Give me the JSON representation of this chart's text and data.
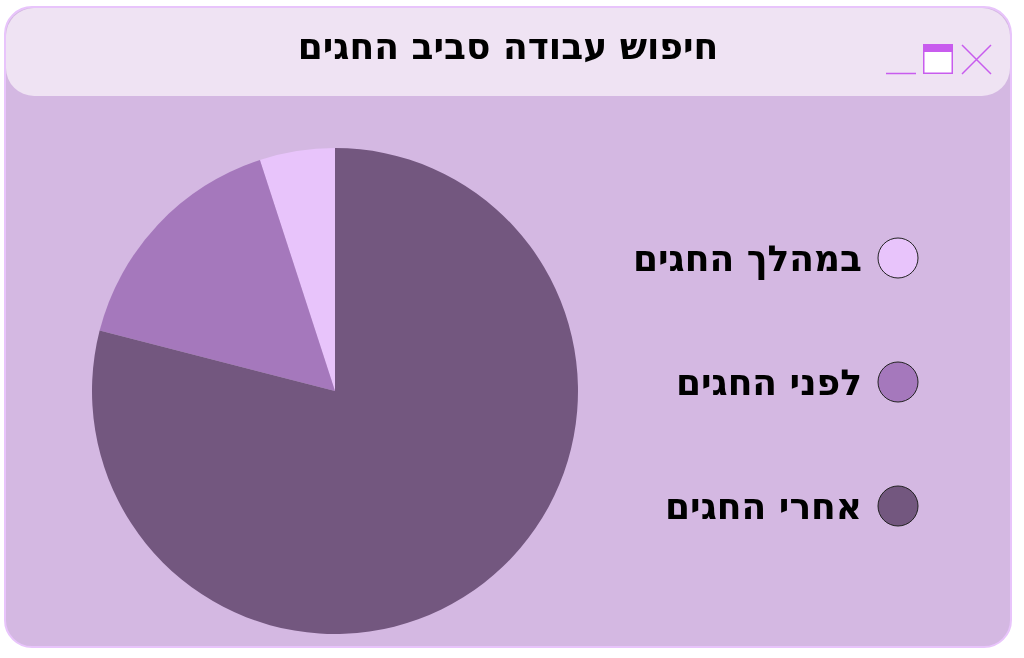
{
  "chart_data": {
    "type": "pie",
    "title": "חיפוש עבודה סביב החגים",
    "categories": [
      "במהלך החגים",
      "לפני החגים",
      "אחרי החגים"
    ],
    "values": [
      5,
      16,
      79
    ],
    "colors": [
      "#e8c4fb",
      "#a578bc",
      "#73577f"
    ],
    "legend": "right"
  }
}
